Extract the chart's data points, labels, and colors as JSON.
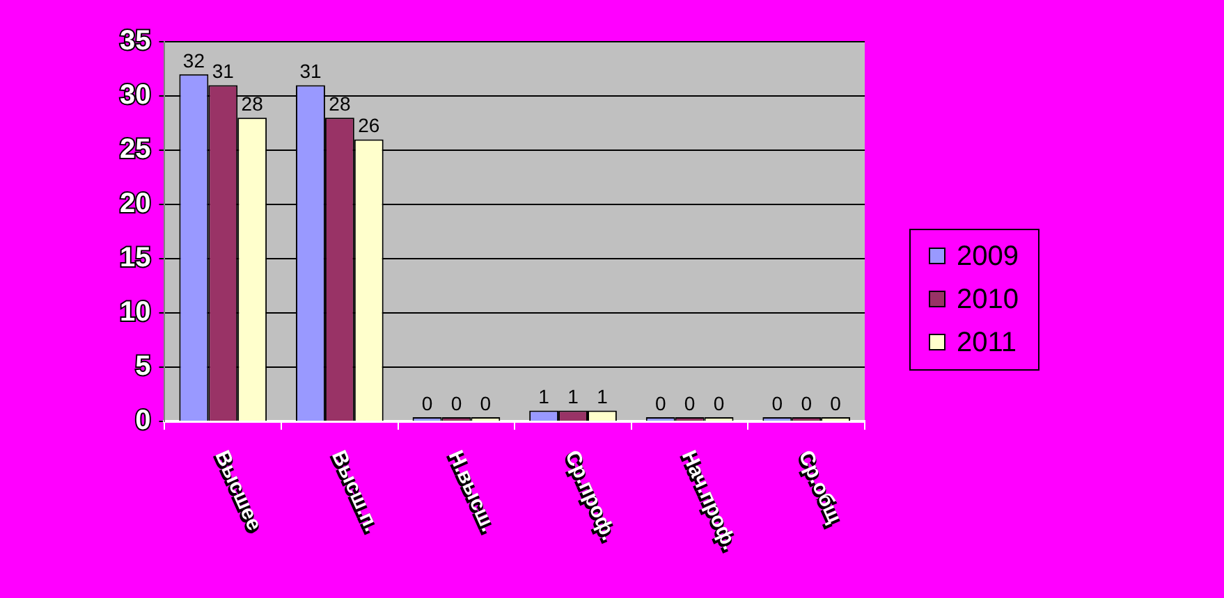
{
  "chart_data": {
    "type": "bar",
    "categories": [
      "Высшее",
      "Высш.п.",
      "Н.высш.",
      "Ср.проф.",
      "Нач.проф.",
      "Ср.общ"
    ],
    "series": [
      {
        "name": "2009",
        "color": "#9999ff",
        "values": [
          32,
          31,
          0,
          1,
          0,
          0
        ]
      },
      {
        "name": "2010",
        "color": "#993366",
        "values": [
          31,
          28,
          0,
          1,
          0,
          0
        ]
      },
      {
        "name": "2011",
        "color": "#ffffcc",
        "values": [
          28,
          26,
          0,
          1,
          0,
          0
        ]
      }
    ],
    "ylim": [
      0,
      35
    ],
    "yticks": [
      0,
      5,
      10,
      15,
      20,
      25,
      30,
      35
    ],
    "grid": "y",
    "legend": "right",
    "data_labels": true
  }
}
